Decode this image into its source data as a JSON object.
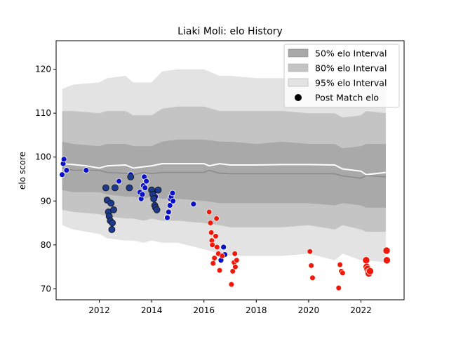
{
  "chart_data": {
    "type": "scatter",
    "title": "Liaki Moli: elo History",
    "xlabel": "",
    "ylabel": "elo score",
    "xlim": [
      2010.35,
      2023.65
    ],
    "ylim": [
      67.5,
      126.5
    ],
    "xticks": [
      "2012",
      "2014",
      "2016",
      "2018",
      "2020",
      "2022"
    ],
    "yticks": [
      "70",
      "80",
      "90",
      "100",
      "110",
      "120"
    ],
    "legend": {
      "placement": "top-right",
      "entries": [
        "50% elo Interval",
        "80% elo Interval",
        "95% elo Interval",
        "Post Match elo"
      ]
    },
    "colors": {
      "band50": "#a9a9a9",
      "band80": "#c4c4c4",
      "band95": "#e3e3e3",
      "mean_line": "#ffffff",
      "median_line": "#8a8a8a",
      "early_points": "#0a10c8",
      "dark_points": "#1d3a8c",
      "late_points": "#f01808"
    },
    "series": [
      {
        "name": "95% elo Interval",
        "x": [
          2010.58,
          2011.0,
          2012.0,
          2012.3,
          2013.0,
          2013.3,
          2013.7,
          2014.0,
          2014.4,
          2015.0,
          2016.0,
          2016.6,
          2017.0,
          2018.0,
          2019.0,
          2020.0,
          2021.0,
          2021.3,
          2022.0,
          2022.2,
          2022.95
        ],
        "upper": [
          115.5,
          116.5,
          117.0,
          118.0,
          118.5,
          117.0,
          117.0,
          117.0,
          119.5,
          120.0,
          120.0,
          118.5,
          118.5,
          118.0,
          118.0,
          117.0,
          117.0,
          115.0,
          116.0,
          117.5,
          117.0
        ],
        "lower": [
          84.5,
          83.5,
          82.5,
          81.5,
          81.0,
          81.0,
          80.5,
          81.0,
          80.5,
          80.5,
          79.0,
          78.0,
          77.5,
          77.5,
          77.5,
          78.0,
          76.5,
          78.0,
          76.5,
          76.5,
          76.0
        ]
      },
      {
        "name": "80% elo Interval",
        "x": [
          2010.58,
          2011.0,
          2012.0,
          2012.3,
          2013.0,
          2013.3,
          2013.7,
          2014.0,
          2014.4,
          2015.0,
          2016.0,
          2016.6,
          2017.0,
          2018.0,
          2019.0,
          2020.0,
          2021.0,
          2021.3,
          2022.0,
          2022.2,
          2022.95
        ],
        "upper": [
          110.5,
          110.5,
          110.0,
          110.5,
          110.5,
          109.5,
          109.5,
          109.5,
          111.0,
          111.5,
          111.5,
          110.5,
          110.5,
          110.5,
          110.5,
          110.0,
          110.0,
          109.0,
          109.5,
          110.5,
          110.0
        ],
        "lower": [
          88.0,
          87.5,
          87.0,
          86.5,
          86.0,
          86.0,
          85.5,
          86.0,
          85.5,
          85.5,
          85.0,
          84.5,
          84.0,
          84.0,
          84.0,
          84.5,
          83.5,
          84.5,
          83.5,
          83.0,
          83.0
        ]
      },
      {
        "name": "50% elo Interval",
        "x": [
          2010.58,
          2011.0,
          2012.0,
          2012.3,
          2013.0,
          2013.3,
          2013.7,
          2014.0,
          2014.4,
          2015.0,
          2016.0,
          2016.6,
          2017.0,
          2018.0,
          2019.0,
          2020.0,
          2021.0,
          2021.3,
          2022.0,
          2022.2,
          2022.95
        ],
        "upper": [
          103.5,
          103.0,
          102.5,
          103.0,
          103.0,
          102.5,
          102.5,
          102.5,
          103.5,
          104.0,
          104.0,
          103.5,
          103.5,
          103.0,
          103.5,
          103.0,
          103.0,
          102.0,
          102.5,
          103.0,
          103.0
        ],
        "lower": [
          92.5,
          92.0,
          92.0,
          91.5,
          91.0,
          91.0,
          90.5,
          91.0,
          90.5,
          90.5,
          90.0,
          89.5,
          89.5,
          89.5,
          89.5,
          89.5,
          89.0,
          89.5,
          89.0,
          88.5,
          88.5
        ]
      },
      {
        "x": [
          2010.58,
          2011.0,
          2011.5,
          2012.0,
          2012.3,
          2013.0,
          2013.3,
          2013.7,
          2014.0,
          2014.4,
          2015.0,
          2016.0,
          2016.2,
          2016.6,
          2017.0,
          2018.0,
          2019.0,
          2020.0,
          2021.0,
          2021.3,
          2022.0,
          2022.2,
          2022.95
        ],
        "values": [
          98.5,
          98.3,
          98.0,
          97.5,
          98.0,
          98.2,
          97.5,
          97.8,
          98.0,
          98.5,
          98.5,
          98.5,
          98.0,
          98.5,
          98.2,
          98.2,
          98.3,
          98.3,
          98.2,
          97.3,
          96.8,
          96.0,
          96.5
        ]
      },
      {
        "x": [
          2010.58,
          2011.0,
          2012.0,
          2012.3,
          2013.0,
          2013.3,
          2013.7,
          2014.0,
          2014.4,
          2015.0,
          2016.0,
          2016.2,
          2016.6,
          2017.0,
          2018.0,
          2019.0,
          2020.0,
          2021.0,
          2021.3,
          2022.0,
          2022.2,
          2022.95
        ],
        "values": [
          97.5,
          97.0,
          97.0,
          96.5,
          96.3,
          96.0,
          96.5,
          96.2,
          96.5,
          96.5,
          96.5,
          97.0,
          96.3,
          96.2,
          96.2,
          96.2,
          96.2,
          96.2,
          95.7,
          95.2,
          95.8,
          95.5
        ]
      },
      {
        "name": "Post Match elo",
        "points_early": [
          [
            2010.58,
            96.0
          ],
          [
            2010.62,
            98.5
          ],
          [
            2010.65,
            99.5
          ],
          [
            2010.75,
            97.0
          ],
          [
            2011.5,
            97.0
          ],
          [
            2012.75,
            94.5
          ],
          [
            2013.2,
            96.0
          ],
          [
            2013.55,
            92.0
          ],
          [
            2013.6,
            90.5
          ],
          [
            2013.65,
            91.5
          ],
          [
            2013.68,
            93.5
          ],
          [
            2013.72,
            95.5
          ],
          [
            2013.75,
            93.0
          ],
          [
            2013.8,
            94.5
          ],
          [
            2014.1,
            92.0
          ],
          [
            2014.15,
            91.0
          ],
          [
            2014.6,
            86.2
          ],
          [
            2014.65,
            87.5
          ],
          [
            2014.7,
            89.0
          ],
          [
            2014.72,
            90.5
          ],
          [
            2014.75,
            91.0
          ],
          [
            2014.8,
            91.8
          ],
          [
            2014.82,
            90.0
          ],
          [
            2015.6,
            89.3
          ],
          [
            2016.65,
            76.5
          ],
          [
            2016.75,
            79.5
          ],
          [
            2016.8,
            77.8
          ]
        ],
        "points_dark": [
          [
            2012.25,
            93.0
          ],
          [
            2012.3,
            90.2
          ],
          [
            2012.35,
            87.5
          ],
          [
            2012.38,
            86.5
          ],
          [
            2012.42,
            85.5
          ],
          [
            2012.45,
            89.5
          ],
          [
            2012.48,
            83.5
          ],
          [
            2012.5,
            85.0
          ],
          [
            2012.55,
            88.0
          ],
          [
            2012.6,
            93.0
          ],
          [
            2013.15,
            93.0
          ],
          [
            2013.2,
            95.5
          ],
          [
            2014.0,
            92.5
          ],
          [
            2014.05,
            91.5
          ],
          [
            2014.08,
            90.5
          ],
          [
            2014.12,
            89.0
          ],
          [
            2014.15,
            88.5
          ],
          [
            2014.2,
            88.0
          ],
          [
            2014.25,
            92.5
          ]
        ],
        "points_late": [
          [
            2016.2,
            87.5
          ],
          [
            2016.25,
            85.0
          ],
          [
            2016.28,
            82.8
          ],
          [
            2016.3,
            81.0
          ],
          [
            2016.32,
            80.0
          ],
          [
            2016.35,
            75.8
          ],
          [
            2016.4,
            77.0
          ],
          [
            2016.45,
            82.0
          ],
          [
            2016.48,
            86.0
          ],
          [
            2016.5,
            79.5
          ],
          [
            2016.55,
            78.0
          ],
          [
            2016.6,
            74.2
          ],
          [
            2016.7,
            77.5
          ],
          [
            2017.05,
            71.0
          ],
          [
            2017.1,
            74.0
          ],
          [
            2017.15,
            76.0
          ],
          [
            2017.18,
            78.0
          ],
          [
            2017.2,
            75.0
          ],
          [
            2017.25,
            76.5
          ],
          [
            2020.05,
            78.5
          ],
          [
            2020.1,
            75.3
          ],
          [
            2020.15,
            72.5
          ],
          [
            2021.15,
            70.2
          ],
          [
            2021.2,
            75.5
          ],
          [
            2021.25,
            74.0
          ],
          [
            2021.3,
            73.6
          ],
          [
            2022.2,
            76.5
          ],
          [
            2022.22,
            75.0
          ],
          [
            2022.25,
            74.5
          ],
          [
            2022.28,
            73.8
          ],
          [
            2022.3,
            73.5
          ],
          [
            2022.35,
            74.0
          ],
          [
            2022.98,
            78.7
          ],
          [
            2022.99,
            76.5
          ]
        ]
      }
    ]
  }
}
